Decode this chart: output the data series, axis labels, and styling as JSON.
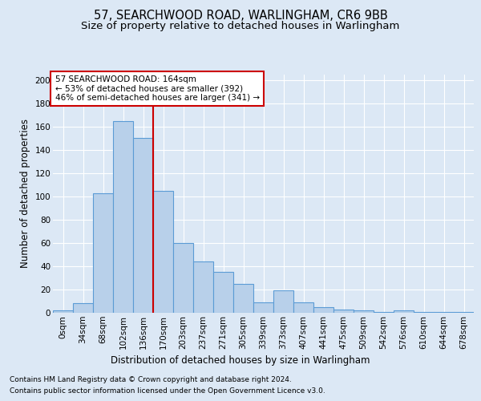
{
  "title1": "57, SEARCHWOOD ROAD, WARLINGHAM, CR6 9BB",
  "title2": "Size of property relative to detached houses in Warlingham",
  "xlabel": "Distribution of detached houses by size in Warlingham",
  "ylabel": "Number of detached properties",
  "footnote1": "Contains HM Land Registry data © Crown copyright and database right 2024.",
  "footnote2": "Contains public sector information licensed under the Open Government Licence v3.0.",
  "bar_labels": [
    "0sqm",
    "34sqm",
    "68sqm",
    "102sqm",
    "136sqm",
    "170sqm",
    "203sqm",
    "237sqm",
    "271sqm",
    "305sqm",
    "339sqm",
    "373sqm",
    "407sqm",
    "441sqm",
    "475sqm",
    "509sqm",
    "542sqm",
    "576sqm",
    "610sqm",
    "644sqm",
    "678sqm"
  ],
  "bar_heights": [
    2,
    8,
    103,
    165,
    150,
    105,
    60,
    44,
    35,
    25,
    9,
    19,
    9,
    5,
    3,
    2,
    1,
    2,
    1,
    1,
    1
  ],
  "bar_color": "#b8d0ea",
  "bar_edge_color": "#5b9bd5",
  "vline_x": 4.5,
  "vline_color": "#cc0000",
  "annotation_text": "57 SEARCHWOOD ROAD: 164sqm\n← 53% of detached houses are smaller (392)\n46% of semi-detached houses are larger (341) →",
  "annotation_box_color": "#ffffff",
  "annotation_box_edge": "#cc0000",
  "ylim": [
    0,
    205
  ],
  "yticks": [
    0,
    20,
    40,
    60,
    80,
    100,
    120,
    140,
    160,
    180,
    200
  ],
  "bg_color": "#dce8f5",
  "plot_bg_color": "#dce8f5",
  "grid_color": "#ffffff",
  "title_fontsize": 10.5,
  "subtitle_fontsize": 9.5,
  "axis_label_fontsize": 8.5,
  "tick_fontsize": 7.5,
  "footnote_fontsize": 6.5,
  "annot_fontsize": 7.5
}
